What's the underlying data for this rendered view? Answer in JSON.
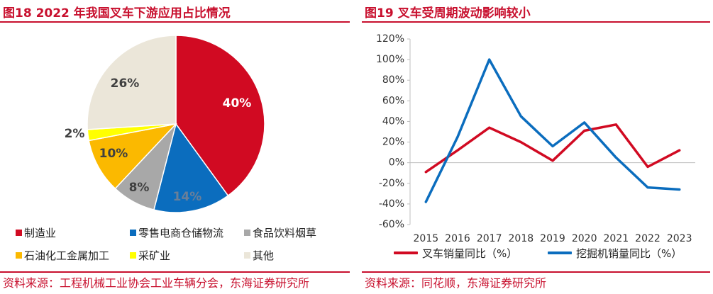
{
  "left": {
    "title": "图18  2022 年我国叉车下游应用占比情况",
    "source": "资料来源：工程机械工业协会工业车辆分会，东海证券研究所"
  },
  "right": {
    "title": "图19  叉车受周期波动影响较小",
    "source": "资料来源：同花顺，东海证券研究所"
  },
  "chart_data": [
    {
      "type": "pie",
      "title": "",
      "start_angle_deg": 0,
      "direction": "clockwise",
      "slices": [
        {
          "name": "制造业",
          "value": 40,
          "label": "40%",
          "color": "#d10a22"
        },
        {
          "name": "零售电商仓储物流",
          "value": 14,
          "label": "14%",
          "color": "#0b6dbe"
        },
        {
          "name": "食品饮料烟草",
          "value": 8,
          "label": "8%",
          "color": "#a8a8a8"
        },
        {
          "name": "石油化工金属加工",
          "value": 10,
          "label": "10%",
          "color": "#fbb900"
        },
        {
          "name": "采矿业",
          "value": 2,
          "label": "2%",
          "color": "#ffff00"
        },
        {
          "name": "其他",
          "value": 26,
          "label": "26%",
          "color": "#ebe6d9"
        }
      ],
      "legend_position": "bottom"
    },
    {
      "type": "line",
      "title": "",
      "x": [
        "2015",
        "2016",
        "2017",
        "2018",
        "2019",
        "2020",
        "2021",
        "2022",
        "2023"
      ],
      "series": [
        {
          "name": "叉车销量同比（%）",
          "color": "#d10a22",
          "values": [
            -9,
            12,
            34,
            20,
            2,
            31,
            37,
            -4,
            12
          ]
        },
        {
          "name": "挖掘机销量同比（%）",
          "color": "#0b6dbe",
          "values": [
            -38,
            25,
            100,
            45,
            16,
            39,
            5,
            -24,
            -26
          ]
        }
      ],
      "ylim": [
        -60,
        120
      ],
      "yticks": [
        -60,
        -40,
        -20,
        0,
        20,
        40,
        60,
        80,
        100,
        120
      ],
      "ytick_labels": [
        "-60%",
        "-40%",
        "-20%",
        "0%",
        "20%",
        "40%",
        "60%",
        "80%",
        "100%",
        "120%"
      ],
      "grid": false,
      "xlabel": "",
      "ylabel": "",
      "legend_position": "bottom"
    }
  ]
}
